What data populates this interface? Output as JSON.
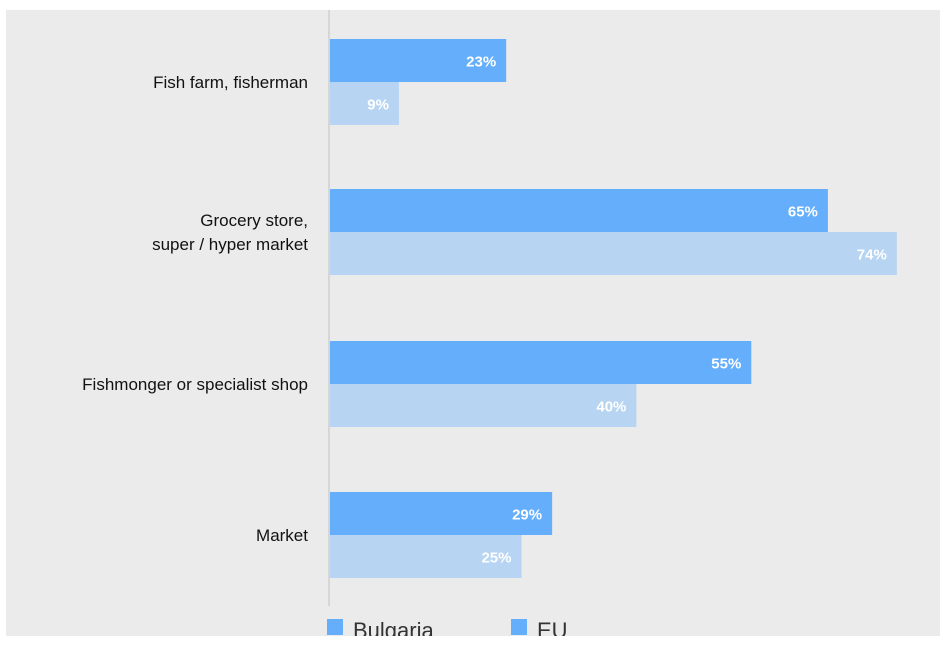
{
  "chart_data": {
    "type": "bar",
    "orientation": "horizontal",
    "categories": [
      [
        "Fish farm, fisherman"
      ],
      [
        "Grocery store,",
        "super / hyper market"
      ],
      [
        "Fishmonger or specialist shop"
      ],
      [
        "Market"
      ]
    ],
    "series": [
      {
        "name": "Bulgaria",
        "values": [
          23,
          65,
          55,
          29
        ],
        "color": "#64aefc"
      },
      {
        "name": "EU",
        "values": [
          9,
          74,
          40,
          25
        ],
        "color": "#b7d5f3"
      }
    ],
    "value_suffix": "%",
    "xlim": [
      0,
      100
    ],
    "grid": false,
    "legend_position": "bottom"
  },
  "legend": {
    "bulgaria": "Bulgaria",
    "eu": "EU"
  }
}
